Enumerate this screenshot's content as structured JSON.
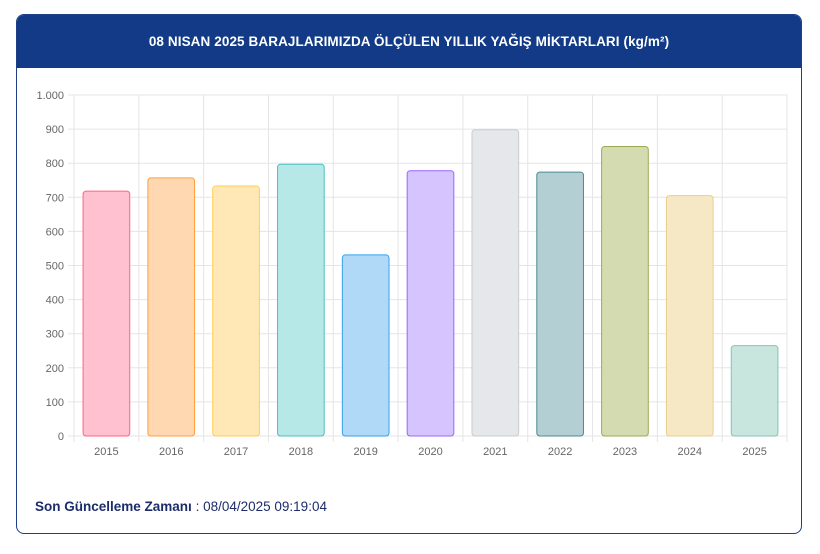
{
  "header": {
    "title": "08 NISAN 2025 BARAJLARIMIZDA ÖLÇÜLEN YILLIK YAĞIŞ MİKTARLARI (kg/m²)"
  },
  "footer": {
    "label": "Son Güncelleme Zamanı",
    "separator": ":",
    "value": "08/04/2025 09:19:04"
  },
  "chart_data": {
    "type": "bar",
    "title": "08 NISAN 2025 BARAJLARIMIZDA ÖLÇÜLEN YILLIK YAĞIŞ MİKTARLARI (kg/m²)",
    "xlabel": "",
    "ylabel": "",
    "ylim": [
      0,
      1000
    ],
    "y_ticks": [
      0,
      100,
      200,
      300,
      400,
      500,
      600,
      700,
      800,
      900,
      1000
    ],
    "y_tick_labels": [
      "0",
      "100",
      "200",
      "300",
      "400",
      "500",
      "600",
      "700",
      "800",
      "900",
      "1.000"
    ],
    "grid": true,
    "categories": [
      "2015",
      "2016",
      "2017",
      "2018",
      "2019",
      "2020",
      "2021",
      "2022",
      "2023",
      "2024",
      "2025"
    ],
    "values": [
      718,
      757,
      733,
      797,
      531,
      778,
      898,
      774,
      849,
      705,
      265
    ],
    "colors": [
      {
        "fill": "#ffc1cf",
        "stroke": "#ff6384"
      },
      {
        "fill": "#ffd7b0",
        "stroke": "#ff9f40"
      },
      {
        "fill": "#ffe8b6",
        "stroke": "#ffcd56"
      },
      {
        "fill": "#b6e8e8",
        "stroke": "#4bc0c0"
      },
      {
        "fill": "#afd9f7",
        "stroke": "#36a2eb"
      },
      {
        "fill": "#d6c4ff",
        "stroke": "#9966ff"
      },
      {
        "fill": "#e6e7ea",
        "stroke": "#c9cbcf"
      },
      {
        "fill": "#b3cfd3",
        "stroke": "#4b8b8f"
      },
      {
        "fill": "#d4dbb0",
        "stroke": "#9da952"
      },
      {
        "fill": "#f6e8c5",
        "stroke": "#e8cf8b"
      },
      {
        "fill": "#c8e6de",
        "stroke": "#82c4b2"
      }
    ]
  }
}
